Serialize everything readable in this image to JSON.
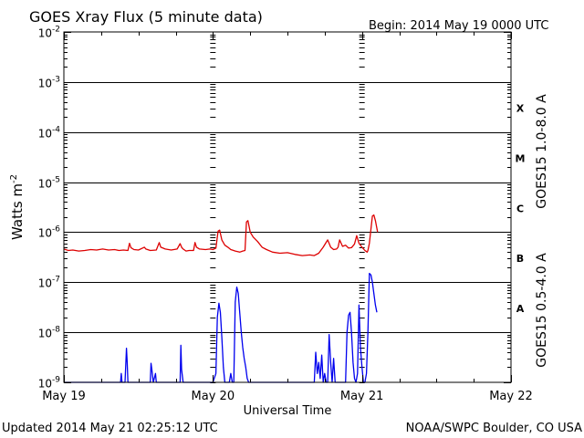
{
  "chart_data": {
    "type": "line",
    "title": "GOES Xray Flux (5 minute data)",
    "begin_label": "Begin:  2014 May 19 0000 UTC",
    "xlabel": "Universal Time",
    "ylabel": "Watts m",
    "ylabel_sup": "-2",
    "yscale": "log",
    "ylim": [
      1e-09,
      0.01
    ],
    "xlim_days": [
      0,
      3
    ],
    "y_ticks": [
      {
        "mant": "10",
        "exp": "-2",
        "value": 0.01
      },
      {
        "mant": "10",
        "exp": "-3",
        "value": 0.001
      },
      {
        "mant": "10",
        "exp": "-4",
        "value": 0.0001
      },
      {
        "mant": "10",
        "exp": "-5",
        "value": 1e-05
      },
      {
        "mant": "10",
        "exp": "-6",
        "value": 1e-06
      },
      {
        "mant": "10",
        "exp": "-7",
        "value": 1e-07
      },
      {
        "mant": "10",
        "exp": "-8",
        "value": 1e-08
      },
      {
        "mant": "10",
        "exp": "-9",
        "value": 1e-09
      }
    ],
    "x_ticks": [
      {
        "label": "May 19",
        "day": 0
      },
      {
        "label": "May 20",
        "day": 1
      },
      {
        "label": "May 21",
        "day": 2
      },
      {
        "label": "May 22",
        "day": 3
      }
    ],
    "flare_classes": [
      {
        "label": "X",
        "value": 0.0003
      },
      {
        "label": "M",
        "value": 3e-05
      },
      {
        "label": "C",
        "value": 3e-06
      },
      {
        "label": "B",
        "value": 3e-07
      },
      {
        "label": "A",
        "value": 3e-08
      }
    ],
    "grid_lines": [
      0.001,
      0.0001,
      1e-05,
      1e-06,
      1e-07,
      1e-08
    ],
    "series": [
      {
        "name": "GOES15 1.0-8.0 A",
        "color": "#dd0000",
        "points": [
          [
            0.0,
            4.6e-07
          ],
          [
            0.03,
            4.3e-07
          ],
          [
            0.06,
            4.4e-07
          ],
          [
            0.1,
            4.2e-07
          ],
          [
            0.14,
            4.3e-07
          ],
          [
            0.18,
            4.5e-07
          ],
          [
            0.22,
            4.4e-07
          ],
          [
            0.26,
            4.6e-07
          ],
          [
            0.3,
            4.4e-07
          ],
          [
            0.34,
            4.5e-07
          ],
          [
            0.37,
            4.3e-07
          ],
          [
            0.4,
            4.4e-07
          ],
          [
            0.43,
            4.3e-07
          ],
          [
            0.44,
            6e-07
          ],
          [
            0.45,
            4.9e-07
          ],
          [
            0.47,
            4.5e-07
          ],
          [
            0.5,
            4.4e-07
          ],
          [
            0.54,
            5e-07
          ],
          [
            0.55,
            4.6e-07
          ],
          [
            0.58,
            4.3e-07
          ],
          [
            0.62,
            4.4e-07
          ],
          [
            0.64,
            6.2e-07
          ],
          [
            0.65,
            5e-07
          ],
          [
            0.68,
            4.6e-07
          ],
          [
            0.72,
            4.4e-07
          ],
          [
            0.76,
            4.6e-07
          ],
          [
            0.78,
            5.9e-07
          ],
          [
            0.79,
            5e-07
          ],
          [
            0.8,
            4.6e-07
          ],
          [
            0.82,
            4.2e-07
          ],
          [
            0.84,
            4.3e-07
          ],
          [
            0.87,
            4.3e-07
          ],
          [
            0.88,
            6.2e-07
          ],
          [
            0.89,
            5e-07
          ],
          [
            0.91,
            4.6e-07
          ],
          [
            0.95,
            4.5e-07
          ],
          [
            0.98,
            4.6e-07
          ],
          [
            1.0,
            4.5e-07
          ],
          [
            1.02,
            4.8e-07
          ],
          [
            1.035,
            1.05e-06
          ],
          [
            1.045,
            1.1e-06
          ],
          [
            1.06,
            7e-07
          ],
          [
            1.08,
            5.5e-07
          ],
          [
            1.1,
            5e-07
          ],
          [
            1.12,
            4.5e-07
          ],
          [
            1.15,
            4.2e-07
          ],
          [
            1.18,
            4e-07
          ],
          [
            1.2,
            4.2e-07
          ],
          [
            1.215,
            4.3e-07
          ],
          [
            1.225,
            1.6e-06
          ],
          [
            1.235,
            1.7e-06
          ],
          [
            1.25,
            1e-06
          ],
          [
            1.27,
            8e-07
          ],
          [
            1.3,
            6.5e-07
          ],
          [
            1.33,
            5e-07
          ],
          [
            1.36,
            4.5e-07
          ],
          [
            1.4,
            4e-07
          ],
          [
            1.45,
            3.8e-07
          ],
          [
            1.5,
            3.9e-07
          ],
          [
            1.55,
            3.6e-07
          ],
          [
            1.6,
            3.4e-07
          ],
          [
            1.65,
            3.5e-07
          ],
          [
            1.68,
            3.4e-07
          ],
          [
            1.71,
            3.8e-07
          ],
          [
            1.74,
            5e-07
          ],
          [
            1.77,
            7e-07
          ],
          [
            1.79,
            5e-07
          ],
          [
            1.81,
            4.5e-07
          ],
          [
            1.83,
            4.6e-07
          ],
          [
            1.84,
            5e-07
          ],
          [
            1.85,
            7e-07
          ],
          [
            1.87,
            5.2e-07
          ],
          [
            1.89,
            5.5e-07
          ],
          [
            1.91,
            4.8e-07
          ],
          [
            1.93,
            4.9e-07
          ],
          [
            1.95,
            5.8e-07
          ],
          [
            1.965,
            8.5e-07
          ],
          [
            1.98,
            6e-07
          ],
          [
            2.0,
            5e-07
          ],
          [
            2.02,
            4.3e-07
          ],
          [
            2.035,
            4e-07
          ],
          [
            2.04,
            4.3e-07
          ],
          [
            2.05,
            6e-07
          ],
          [
            2.07,
            2.1e-06
          ],
          [
            2.08,
            2.2e-06
          ],
          [
            2.09,
            1.7e-06
          ],
          [
            2.1,
            1.2e-06
          ],
          [
            2.105,
            1e-06
          ]
        ]
      },
      {
        "name": "GOES15 0.5-4.0 A",
        "color": "#0000ee",
        "points": [
          [
            0.0,
            1e-09
          ],
          [
            0.38,
            1e-09
          ],
          [
            0.385,
            1.5e-09
          ],
          [
            0.39,
            1e-09
          ],
          [
            0.41,
            1e-09
          ],
          [
            0.42,
            4.8e-09
          ],
          [
            0.425,
            2.5e-09
          ],
          [
            0.43,
            1e-09
          ],
          [
            0.58,
            1e-09
          ],
          [
            0.585,
            2.4e-09
          ],
          [
            0.59,
            1.8e-09
          ],
          [
            0.6,
            1e-09
          ],
          [
            0.615,
            1.5e-09
          ],
          [
            0.62,
            1e-09
          ],
          [
            0.78,
            1e-09
          ],
          [
            0.785,
            5.5e-09
          ],
          [
            0.79,
            1.8e-09
          ],
          [
            0.8,
            1e-09
          ],
          [
            1.0,
            1e-09
          ],
          [
            1.02,
            1.5e-09
          ],
          [
            1.03,
            2e-08
          ],
          [
            1.04,
            3.8e-08
          ],
          [
            1.05,
            2.5e-08
          ],
          [
            1.06,
            8e-09
          ],
          [
            1.07,
            2e-09
          ],
          [
            1.08,
            1e-09
          ],
          [
            1.11,
            1e-09
          ],
          [
            1.12,
            1.5e-09
          ],
          [
            1.13,
            1e-09
          ],
          [
            1.14,
            1e-09
          ],
          [
            1.15,
            4e-08
          ],
          [
            1.16,
            8e-08
          ],
          [
            1.17,
            6e-08
          ],
          [
            1.18,
            2.5e-08
          ],
          [
            1.19,
            1e-08
          ],
          [
            1.2,
            5e-09
          ],
          [
            1.21,
            3e-09
          ],
          [
            1.22,
            2e-09
          ],
          [
            1.23,
            1.2e-09
          ],
          [
            1.24,
            1e-09
          ],
          [
            1.68,
            1e-09
          ],
          [
            1.69,
            4e-09
          ],
          [
            1.7,
            1.5e-09
          ],
          [
            1.71,
            2.5e-09
          ],
          [
            1.72,
            1.2e-09
          ],
          [
            1.73,
            3.5e-09
          ],
          [
            1.74,
            1e-09
          ],
          [
            1.75,
            1.5e-09
          ],
          [
            1.76,
            1e-09
          ],
          [
            1.77,
            1e-09
          ],
          [
            1.78,
            9e-09
          ],
          [
            1.79,
            2.5e-09
          ],
          [
            1.8,
            1e-09
          ],
          [
            1.81,
            3e-09
          ],
          [
            1.82,
            1e-09
          ],
          [
            1.89,
            1e-09
          ],
          [
            1.9,
            1e-08
          ],
          [
            1.91,
            2.2e-08
          ],
          [
            1.92,
            2.5e-08
          ],
          [
            1.93,
            1e-08
          ],
          [
            1.94,
            2.5e-09
          ],
          [
            1.95,
            1.2e-09
          ],
          [
            1.96,
            1e-09
          ],
          [
            1.97,
            1.5e-09
          ],
          [
            1.98,
            3.5e-08
          ],
          [
            1.99,
            5e-09
          ],
          [
            2.0,
            2e-09
          ],
          [
            2.01,
            1e-09
          ],
          [
            2.02,
            1e-09
          ],
          [
            2.03,
            1.5e-09
          ],
          [
            2.04,
            1e-08
          ],
          [
            2.05,
            1.5e-07
          ],
          [
            2.06,
            1.4e-07
          ],
          [
            2.07,
            1e-07
          ],
          [
            2.08,
            6e-08
          ],
          [
            2.09,
            3.5e-08
          ],
          [
            2.1,
            2.5e-08
          ]
        ]
      }
    ]
  },
  "footer": {
    "updated": "Updated 2014 May 21 02:25:12 UTC",
    "credit": "NOAA/SWPC Boulder, CO USA"
  }
}
